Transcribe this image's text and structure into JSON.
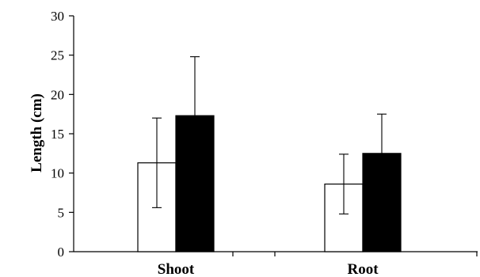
{
  "chart_data": {
    "type": "bar",
    "title": "",
    "xlabel": "",
    "ylabel": "Length (cm)",
    "ylim": [
      0,
      30
    ],
    "yticks": [
      0,
      5,
      10,
      15,
      20,
      25,
      30
    ],
    "grid": false,
    "categories": [
      "Shoot",
      "Root"
    ],
    "series": [
      {
        "values": [
          11.3,
          8.6
        ],
        "errors": [
          5.7,
          3.8
        ],
        "fill": "#ffffff",
        "stroke": "#000000"
      },
      {
        "values": [
          17.3,
          12.5
        ],
        "errors": [
          7.5,
          5.0
        ],
        "fill": "#000000",
        "stroke": "#000000"
      }
    ]
  }
}
